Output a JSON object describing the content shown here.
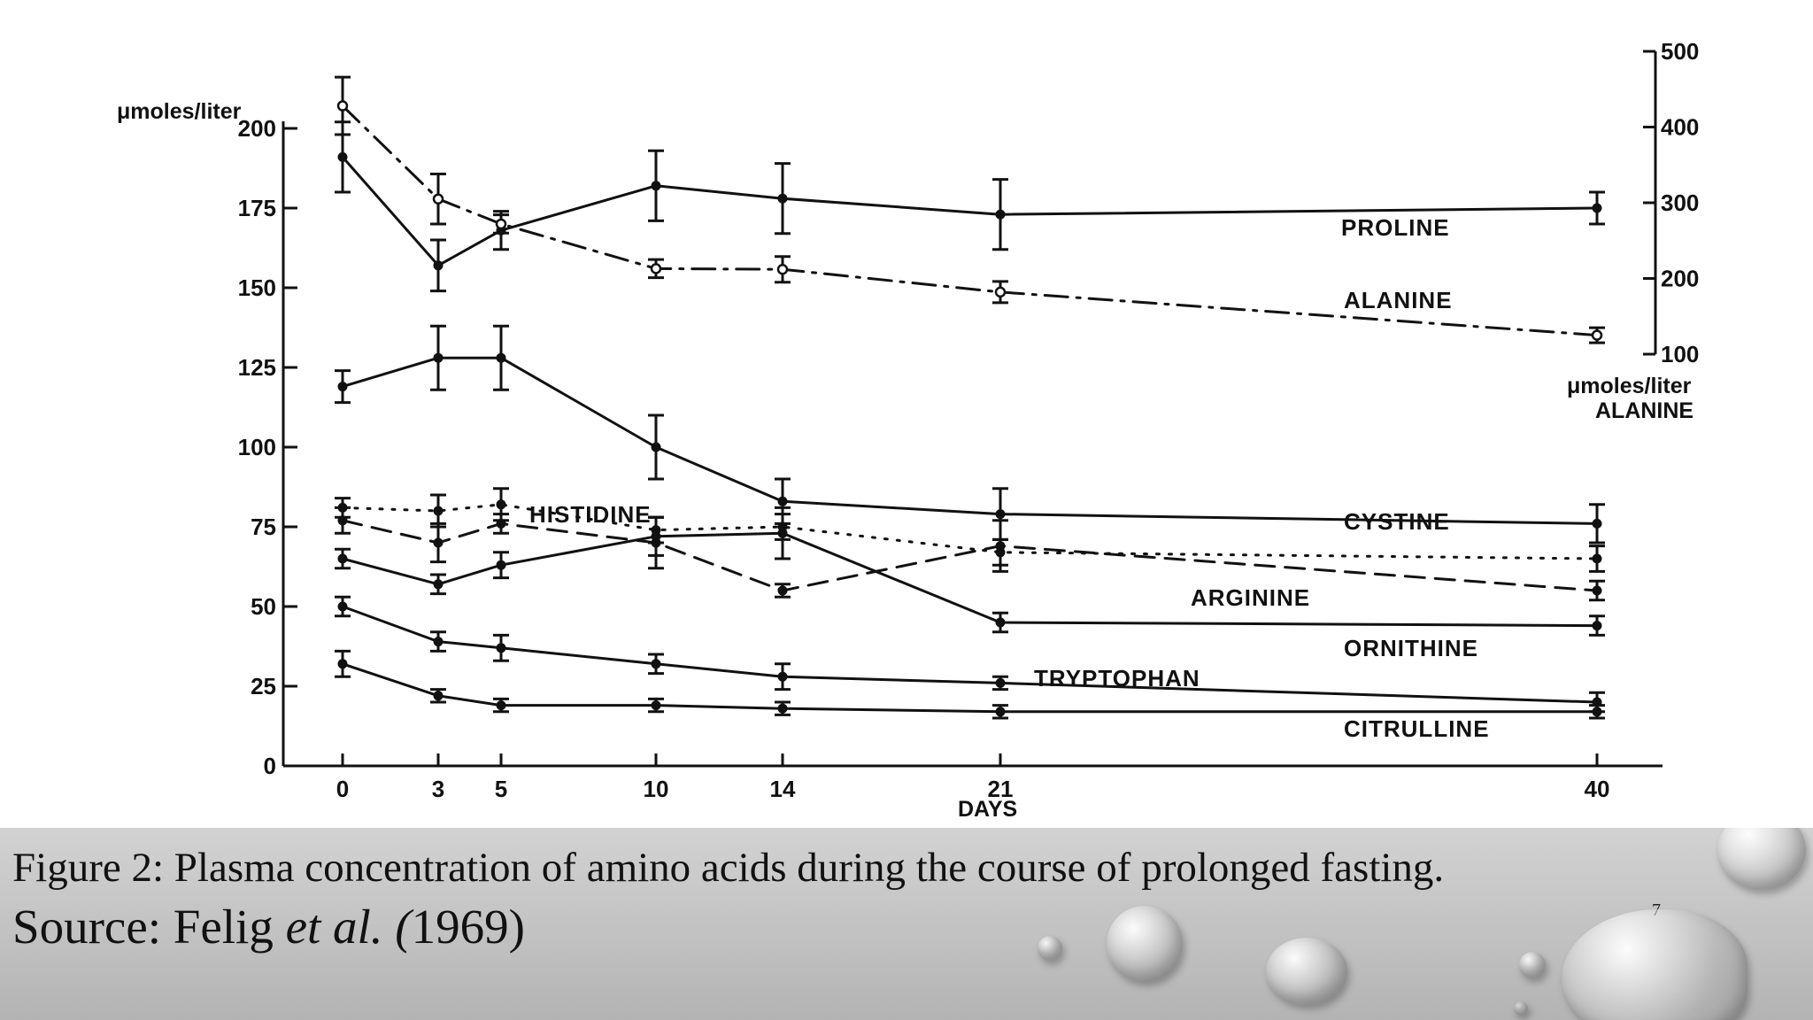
{
  "slide": {
    "caption": "Figure 2: Plasma concentration of amino acids during the course of prolonged fasting.",
    "source_prefix": "Source: Felig ",
    "source_italic": "et al. (",
    "source_suffix": "1969)",
    "page_number": "7",
    "caption_bg": "#c4c4c4"
  },
  "chart_data": {
    "type": "line",
    "title": "",
    "xlabel": "DAYS",
    "ylabel": "μmoles/liter",
    "x_ticks": [
      0,
      3,
      5,
      10,
      14,
      21,
      40
    ],
    "x_tick_labels": [
      "0",
      "3",
      "5",
      "10",
      "14",
      "21",
      "40"
    ],
    "ylim": [
      0,
      200
    ],
    "y_ticks": [
      0,
      25,
      50,
      75,
      100,
      125,
      150,
      175,
      200
    ],
    "y_tick_labels": [
      "0",
      "25",
      "50",
      "75",
      "100",
      "125",
      "150",
      "175",
      "200"
    ],
    "y2label": "μmoles/liter",
    "y2label_sub": "ALANINE",
    "y2lim": [
      100,
      500
    ],
    "y2_ticks": [
      100,
      200,
      300,
      400,
      500
    ],
    "y2_tick_labels": [
      "100",
      "200",
      "300",
      "400",
      "500"
    ],
    "grid": false,
    "ink_color": "#111111",
    "series": [
      {
        "name": "PROLINE",
        "axis": "left",
        "style": "solid",
        "marker": "dot",
        "x": [
          0,
          3,
          5,
          10,
          14,
          21,
          40
        ],
        "y": [
          191,
          157,
          168,
          182,
          178,
          173,
          175
        ],
        "err": [
          11,
          8,
          6,
          11,
          11,
          11,
          5
        ]
      },
      {
        "name": "ALANINE",
        "axis": "right",
        "style": "dashdot",
        "marker": "circle",
        "x": [
          0,
          3,
          5,
          10,
          14,
          21,
          40
        ],
        "y": [
          428,
          305,
          272,
          213,
          212,
          182,
          125
        ],
        "err": [
          38,
          33,
          12,
          12,
          17,
          14,
          10
        ]
      },
      {
        "name": "CYSTINE",
        "axis": "left",
        "style": "solid",
        "marker": "dot",
        "x": [
          0,
          3,
          5,
          10,
          14,
          21,
          40
        ],
        "y": [
          119,
          128,
          128,
          100,
          83,
          79,
          76
        ],
        "err": [
          5,
          10,
          10,
          10,
          7,
          8,
          6
        ]
      },
      {
        "name": "HISTIDINE",
        "axis": "left",
        "style": "dotted",
        "marker": "dot",
        "x": [
          0,
          3,
          5,
          10,
          14,
          21,
          40
        ],
        "y": [
          81,
          80,
          82,
          74,
          75,
          67,
          65
        ],
        "err": [
          3,
          5,
          5,
          4,
          4,
          4,
          4
        ]
      },
      {
        "name": "ARGININE",
        "axis": "left",
        "style": "dashed",
        "marker": "dot",
        "x": [
          0,
          3,
          5,
          10,
          14,
          21,
          40
        ],
        "y": [
          77,
          70,
          76,
          70,
          55,
          69,
          55
        ],
        "err": [
          4,
          6,
          3,
          8,
          2,
          8,
          3
        ]
      },
      {
        "name": "ORNITHINE",
        "axis": "left",
        "style": "solid",
        "marker": "dot",
        "x": [
          0,
          3,
          5,
          10,
          14,
          21,
          40
        ],
        "y": [
          65,
          57,
          63,
          72,
          73,
          45,
          44
        ],
        "err": [
          3,
          3,
          4,
          6,
          8,
          3,
          3
        ]
      },
      {
        "name": "TRYPTOPHAN",
        "axis": "left",
        "style": "solid",
        "marker": "dot",
        "x": [
          0,
          3,
          5,
          10,
          14,
          21,
          40
        ],
        "y": [
          50,
          39,
          37,
          32,
          28,
          26,
          20
        ],
        "err": [
          3,
          3,
          4,
          3,
          4,
          2,
          3
        ]
      },
      {
        "name": "CITRULLINE",
        "axis": "left",
        "style": "solid",
        "marker": "dot",
        "x": [
          0,
          3,
          5,
          10,
          14,
          21,
          40
        ],
        "y": [
          32,
          22,
          19,
          19,
          18,
          17,
          17
        ],
        "err": [
          4,
          2,
          2,
          2,
          2,
          2,
          2
        ]
      }
    ]
  }
}
